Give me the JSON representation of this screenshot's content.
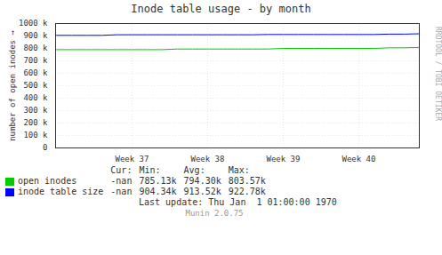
{
  "chart_data": {
    "type": "line",
    "title": "Inode table usage - by month",
    "ylabel": "number of open inodes",
    "categories": [
      null,
      null,
      null,
      null,
      null,
      "Week 37",
      null,
      null,
      null,
      null,
      "Week 38",
      null,
      null,
      null,
      null,
      "Week 39",
      null,
      null,
      null,
      null,
      "Week 40",
      null,
      null,
      null,
      null
    ],
    "series": [
      {
        "name": "open inodes",
        "color": "#00cc00",
        "values": [
          790000,
          790000,
          790000,
          790000,
          790000,
          790000,
          790000,
          790000,
          795000,
          795000,
          795000,
          795000,
          795000,
          795000,
          795000,
          800000,
          800000,
          800000,
          800000,
          800000,
          800000,
          800000,
          805000,
          805000,
          808000
        ]
      },
      {
        "name": "inode table size",
        "color": "#0000ff",
        "values": [
          905000,
          905000,
          905000,
          905000,
          910000,
          910000,
          910000,
          910000,
          910000,
          910000,
          910000,
          910000,
          910000,
          910000,
          912000,
          912000,
          912000,
          912000,
          912000,
          912000,
          912000,
          912000,
          915000,
          915000,
          918000
        ]
      }
    ],
    "ylim": [
      0,
      1000000
    ],
    "yticks": [
      0,
      {
        "value": 100000,
        "label": "100 k"
      },
      {
        "value": 200000,
        "label": "200 k"
      },
      {
        "value": 300000,
        "label": "300 k"
      },
      {
        "value": 400000,
        "label": "400 k"
      },
      {
        "value": 500000,
        "label": "500 k"
      },
      {
        "value": 600000,
        "label": "600 k"
      },
      {
        "value": 700000,
        "label": "700 k"
      },
      {
        "value": 800000,
        "label": "800 k"
      },
      {
        "value": 900000,
        "label": "900 k"
      },
      {
        "value": 1000000,
        "label": "1000 k"
      }
    ],
    "grid": true,
    "annotations": [
      [
        "Cur:",
        "Min:",
        "Avg:",
        "Max:"
      ],
      [
        "-nan",
        "785.13k",
        "794.30k",
        "803.57k"
      ],
      [
        "-nan",
        "904.34k",
        "913.52k",
        "922.78k"
      ],
      "Last update: Thu Jan  1 01:00:00 1970",
      "Munin 2.0.75",
      "RRDTOOL / TOBI OETIKER"
    ]
  }
}
